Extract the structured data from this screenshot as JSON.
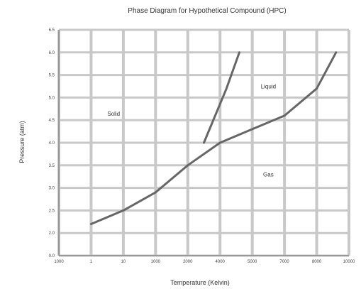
{
  "chart_data": {
    "type": "line",
    "title": "Phase Diagram for Hypothetical Compound (HPC)",
    "xlabel": "Temperature (Kelvin)",
    "ylabel": "Pressure (atm)",
    "x_ticks": [
      "1000",
      "1",
      "10",
      "1000",
      "2000",
      "4000",
      "5000",
      "7000",
      "8000",
      "10000"
    ],
    "y_ticks": [
      "0.0",
      "2.0",
      "2.5",
      "3.0",
      "3.5",
      "4.0",
      "4.5",
      "5.0",
      "5.5",
      "6.0",
      "6.5"
    ],
    "grid": true,
    "legend": "none",
    "regions": [
      {
        "label": "Solid",
        "x": 1.7,
        "y": 4.6
      },
      {
        "label": "Liquid",
        "x": 6.5,
        "y": 5.2
      },
      {
        "label": "Gas",
        "x": 6.5,
        "y": 3.25
      }
    ],
    "series": [
      {
        "id": "sublimation-vaporization",
        "color": "#666666",
        "x": [
          1.0,
          2.0,
          3.0,
          4.0,
          5.0,
          6.0,
          7.0,
          8.0,
          8.6
        ],
        "y": [
          2.2,
          2.5,
          2.9,
          3.5,
          4.0,
          4.3,
          4.6,
          5.2,
          6.0
        ]
      },
      {
        "id": "fusion",
        "color": "#666666",
        "x": [
          4.5,
          5.2,
          5.6
        ],
        "y": [
          4.0,
          5.2,
          6.0
        ]
      }
    ]
  }
}
